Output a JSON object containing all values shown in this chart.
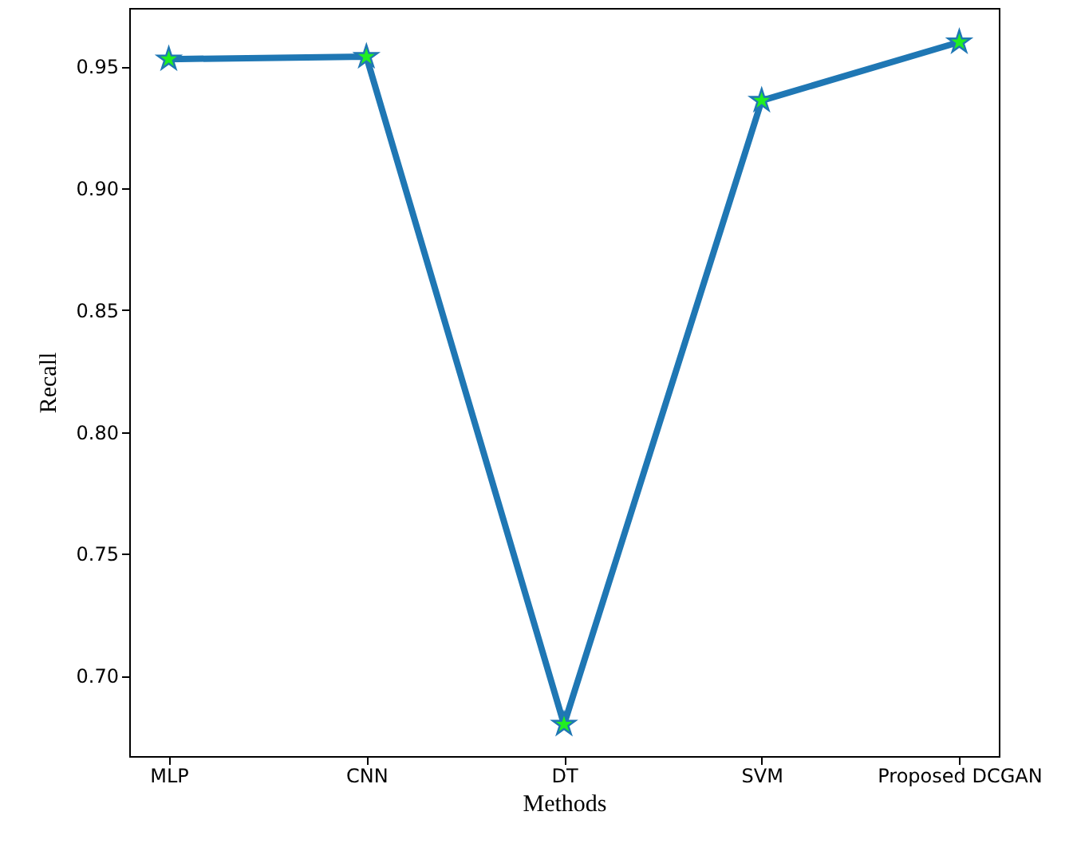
{
  "chart_data": {
    "type": "line",
    "xlabel": "Methods",
    "ylabel": "Recall",
    "categories": [
      "MLP",
      "CNN",
      "DT",
      "SVM",
      "Proposed DCGAN"
    ],
    "series": [
      {
        "color": "#1f77b4",
        "values": [
          0.953,
          0.954,
          0.68,
          0.936,
          0.96
        ]
      }
    ],
    "marker": "star",
    "line_style": "solid",
    "grid": false,
    "ylim": [
      0.667,
      0.974
    ],
    "yticks": [
      {
        "value": 0.7,
        "label": "0.70"
      },
      0.75,
      {
        "value": 0.8,
        "label": "0.80"
      },
      0.85,
      {
        "value": 0.9,
        "label": "0.90"
      },
      0.95
    ]
  }
}
